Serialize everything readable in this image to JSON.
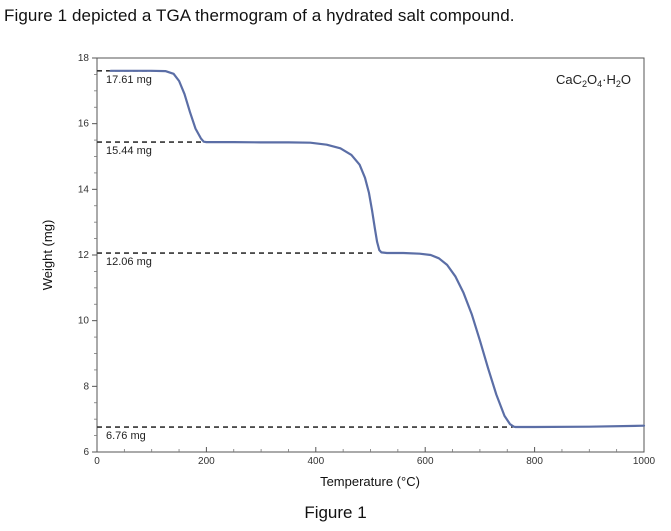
{
  "intro_text": "Figure 1 depicted a TGA thermogram of a hydrated salt compound.",
  "caption": "Figure 1",
  "chart_data": {
    "type": "line",
    "title": "",
    "xlabel": "Temperature (°C)",
    "ylabel": "Weight (mg)",
    "xlim": [
      0,
      1000
    ],
    "ylim": [
      6,
      18
    ],
    "x_ticks": [
      0,
      200,
      400,
      600,
      800,
      1000
    ],
    "y_ticks": [
      6,
      8,
      10,
      12,
      14,
      16,
      18
    ],
    "grid": false,
    "legend_label": {
      "main": "CaC",
      "sub1": "2",
      "mid1": "O",
      "sub2": "4",
      "mid2": "·H",
      "sub3": "2",
      "end": "O"
    },
    "line_color": "#5b6ea6",
    "plateaus": [
      {
        "value": 17.61,
        "label": "17.61 mg",
        "x_end": 120
      },
      {
        "value": 15.44,
        "label": "15.44 mg",
        "x_end": 200
      },
      {
        "value": 12.06,
        "label": "12.06 mg",
        "x_end": 510
      },
      {
        "value": 6.76,
        "label": "6.76 mg",
        "x_end": 760
      }
    ],
    "series": [
      {
        "x": [
          25,
          100,
          125,
          140,
          150,
          160,
          170,
          180,
          190,
          195,
          200,
          250,
          300,
          350,
          390,
          420,
          445,
          465,
          480,
          490,
          497,
          503,
          508,
          512,
          516,
          520,
          530,
          560,
          590,
          610,
          625,
          640,
          655,
          670,
          685,
          700,
          715,
          730,
          745,
          755,
          762,
          765,
          800,
          900,
          1000
        ],
        "y": [
          17.61,
          17.61,
          17.6,
          17.52,
          17.3,
          16.9,
          16.35,
          15.85,
          15.55,
          15.45,
          15.44,
          15.44,
          15.43,
          15.43,
          15.42,
          15.36,
          15.25,
          15.05,
          14.75,
          14.35,
          13.9,
          13.35,
          12.8,
          12.4,
          12.15,
          12.08,
          12.06,
          12.06,
          12.04,
          12.0,
          11.9,
          11.7,
          11.35,
          10.85,
          10.2,
          9.4,
          8.55,
          7.75,
          7.1,
          6.85,
          6.77,
          6.76,
          6.76,
          6.77,
          6.8
        ]
      }
    ]
  }
}
